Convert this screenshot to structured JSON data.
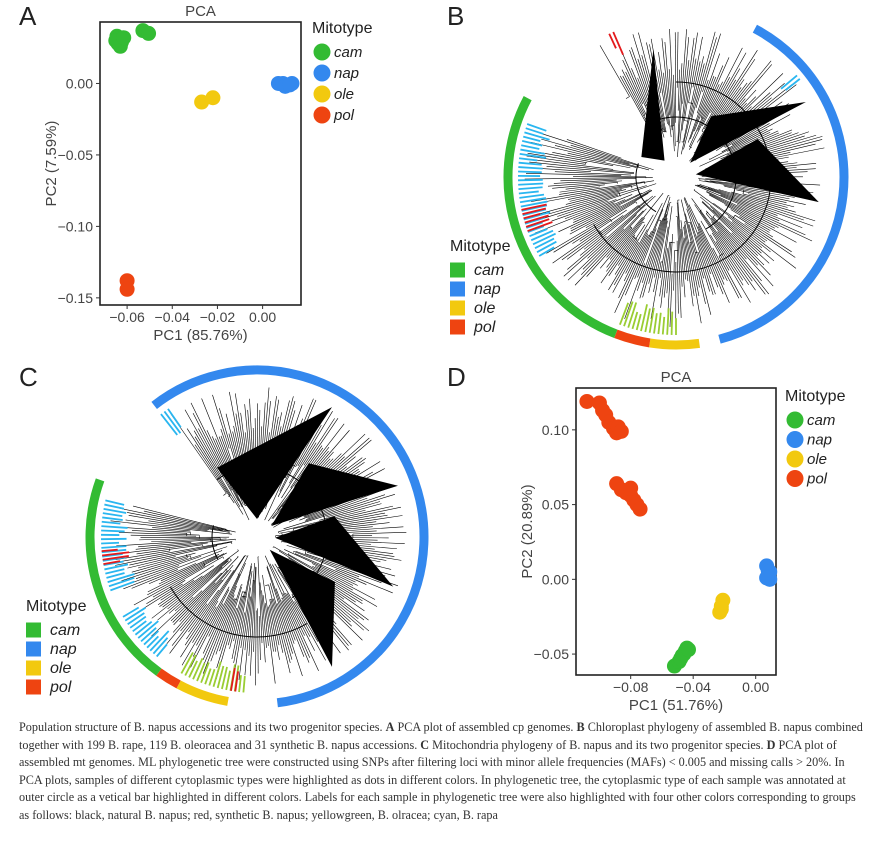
{
  "panels": {
    "A": {
      "letter": "A"
    },
    "B": {
      "letter": "B"
    },
    "C": {
      "letter": "C"
    },
    "D": {
      "letter": "D"
    }
  },
  "legend_title": "Mitotype",
  "legend_items": [
    "cam",
    "nap",
    "ole",
    "pol"
  ],
  "colors": {
    "cam": "#33bb33",
    "nap": "#3388ee",
    "ole": "#f2c90f",
    "pol": "#ee4411",
    "label_cyan": "#29b6f0",
    "label_red": "#e31a1c",
    "label_yg": "#9acd32"
  },
  "chart_data": [
    {
      "panel": "A",
      "type": "scatter",
      "title": "PCA",
      "xlabel": "PC1 (85.76%)",
      "ylabel": "PC2 (7.59%)",
      "xlim": [
        -0.072,
        0.017
      ],
      "ylim": [
        -0.155,
        0.043
      ],
      "xticks": [
        -0.06,
        -0.04,
        -0.02,
        0.0
      ],
      "xtick_labels": [
        "−0.06",
        "−0.04",
        "−0.02",
        "0.00"
      ],
      "yticks": [
        0.0,
        -0.05,
        -0.1,
        -0.15
      ],
      "ytick_labels": [
        "0.00",
        "−0.05",
        "−0.10",
        "−0.15"
      ],
      "series": [
        {
          "name": "cam",
          "points": [
            [
              -0.0645,
              0.033
            ],
            [
              -0.0635,
              0.031
            ],
            [
              -0.064,
              0.028
            ],
            [
              -0.063,
              0.026
            ],
            [
              -0.0625,
              0.029
            ],
            [
              -0.065,
              0.03
            ],
            [
              -0.0615,
              0.032
            ],
            [
              -0.053,
              0.037
            ],
            [
              -0.0505,
              0.035
            ]
          ]
        },
        {
          "name": "nap",
          "points": [
            [
              0.007,
              0.0
            ],
            [
              0.009,
              0.0
            ],
            [
              0.011,
              -0.001
            ],
            [
              0.013,
              0.0
            ],
            [
              0.01,
              -0.002
            ],
            [
              0.012,
              -0.001
            ]
          ]
        },
        {
          "name": "ole",
          "points": [
            [
              -0.027,
              -0.013
            ],
            [
              -0.022,
              -0.01
            ]
          ]
        },
        {
          "name": "pol",
          "points": [
            [
              -0.06,
              -0.138
            ],
            [
              -0.06,
              -0.144
            ]
          ]
        }
      ]
    },
    {
      "panel": "D",
      "type": "scatter",
      "title": "PCA",
      "xlabel": "PC1 (51.76%)",
      "ylabel": "PC2 (20.89%)",
      "xlim": [
        -0.115,
        0.013
      ],
      "ylim": [
        -0.064,
        0.128
      ],
      "xticks": [
        -0.08,
        -0.04,
        0.0
      ],
      "xtick_labels": [
        "−0.08",
        "−0.04",
        "0.00"
      ],
      "yticks": [
        0.1,
        0.05,
        0.0,
        -0.05
      ],
      "ytick_labels": [
        "0.10",
        "0.05",
        "0.00",
        "−0.05"
      ],
      "series": [
        {
          "name": "cam",
          "points": [
            [
              -0.052,
              -0.058
            ],
            [
              -0.049,
              -0.055
            ],
            [
              -0.047,
              -0.051
            ],
            [
              -0.045,
              -0.048
            ],
            [
              -0.044,
              -0.046
            ],
            [
              -0.048,
              -0.053
            ],
            [
              -0.046,
              -0.05
            ],
            [
              -0.043,
              -0.047
            ]
          ]
        },
        {
          "name": "nap",
          "points": [
            [
              0.007,
              0.009
            ],
            [
              0.008,
              0.006
            ],
            [
              0.008,
              0.003
            ],
            [
              0.009,
              0.0
            ],
            [
              0.009,
              0.005
            ],
            [
              0.007,
              0.001
            ]
          ]
        },
        {
          "name": "ole",
          "points": [
            [
              -0.023,
              -0.022
            ],
            [
              -0.022,
              -0.018
            ],
            [
              -0.021,
              -0.014
            ],
            [
              -0.022,
              -0.02
            ]
          ]
        },
        {
          "name": "pol",
          "points": [
            [
              -0.108,
              0.119
            ],
            [
              -0.1,
              0.118
            ],
            [
              -0.098,
              0.113
            ],
            [
              -0.096,
              0.11
            ],
            [
              -0.094,
              0.105
            ],
            [
              -0.091,
              0.101
            ],
            [
              -0.089,
              0.098
            ],
            [
              -0.088,
              0.102
            ],
            [
              -0.086,
              0.099
            ],
            [
              -0.089,
              0.064
            ],
            [
              -0.086,
              0.06
            ],
            [
              -0.083,
              0.058
            ],
            [
              -0.08,
              0.056
            ],
            [
              -0.078,
              0.053
            ],
            [
              -0.076,
              0.05
            ],
            [
              -0.074,
              0.047
            ],
            [
              -0.08,
              0.061
            ]
          ]
        }
      ]
    }
  ],
  "caption": {
    "intro": "Population structure of B. napus accessions and its two progenitor species.",
    "a_label": "A",
    "a_text": "PCA plot of assembled cp genomes.",
    "b_label": "B",
    "b_text": "Chloroplast phylogeny of assembled B. napus combined together with 199 B. rape, 119 B. oleoracea and 31 synthetic B. napus accessions.",
    "c_label": "C",
    "c_text": "Mitochondria phylogeny of B. napus and its two progenitor species.",
    "d_label": "D",
    "d_text": "PCA plot of assembled mt genomes. ML phylogenetic tree were constructed using SNPs after filtering loci with minor allele frequencies (MAFs) < 0.005 and missing calls > 20%. In PCA plots, samples of different cytoplasmic types were highlighted as dots in different colors. In phylogenetic tree, the cytoplasmic type of each sample was annotated at outer circle as a vetical bar highlighted in different colors. Labels for each sample in phylogenetic tree were also highlighted with four other colors corresponding to groups as follows: black, natural B. napus; red, synthetic B. napus; yellowgreen, B. olracea; cyan, B. rapa"
  }
}
